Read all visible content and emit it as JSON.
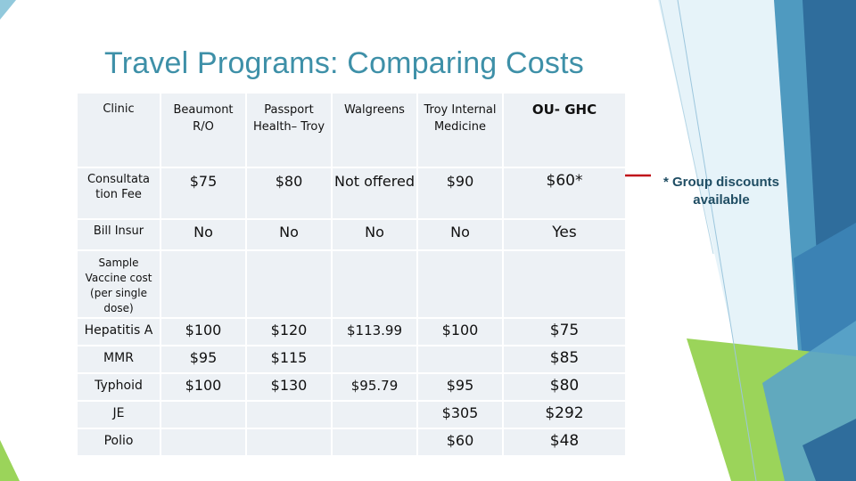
{
  "slide": {
    "title": "Travel Programs: Comparing Costs",
    "note": "* Group discounts available"
  },
  "table": {
    "header": {
      "label": "Clinic",
      "beaumont": "Beaumont R/O",
      "passport": "Passport Health– Troy",
      "walgreens": "Walgreens",
      "troy": "Troy Internal Medicine",
      "ou": "OU- GHC"
    },
    "consultation": {
      "label": "Consultata tion Fee",
      "beaumont": "$75",
      "passport": "$80",
      "walgreens": "Not offered",
      "troy": "$90",
      "ou": "$60*"
    },
    "insurance": {
      "label": "Bill Insur",
      "beaumont": "No",
      "passport": "No",
      "walgreens": "No",
      "troy": "No",
      "ou": "Yes"
    },
    "sample": {
      "label": "Sample Vaccine cost (per single dose)"
    },
    "hepatitis_a": {
      "label": "Hepatitis A",
      "beaumont": "$100",
      "passport": "$120",
      "walgreens": "$113.99",
      "troy": "$100",
      "ou": "$75"
    },
    "mmr": {
      "label": "MMR",
      "beaumont": "$95",
      "passport": "$115",
      "walgreens": "",
      "troy": "",
      "ou": "$85"
    },
    "typhoid": {
      "label": "Typhoid",
      "beaumont": "$100",
      "passport": "$130",
      "walgreens": "$95.79",
      "troy": "$95",
      "ou": "$80"
    },
    "je": {
      "label": "JE",
      "beaumont": "",
      "passport": "",
      "walgreens": "",
      "troy": "$305",
      "ou": "$292"
    },
    "polio": {
      "label": "Polio",
      "beaumont": "",
      "passport": "",
      "walgreens": "",
      "troy": "$60",
      "ou": "$48"
    }
  },
  "colors": {
    "title": "#3e90a8",
    "accent_red": "#c0101a",
    "cell_background": "#edf1f5",
    "deco_light_green": "#9bd45a",
    "deco_blue": "#2f6d9c"
  }
}
